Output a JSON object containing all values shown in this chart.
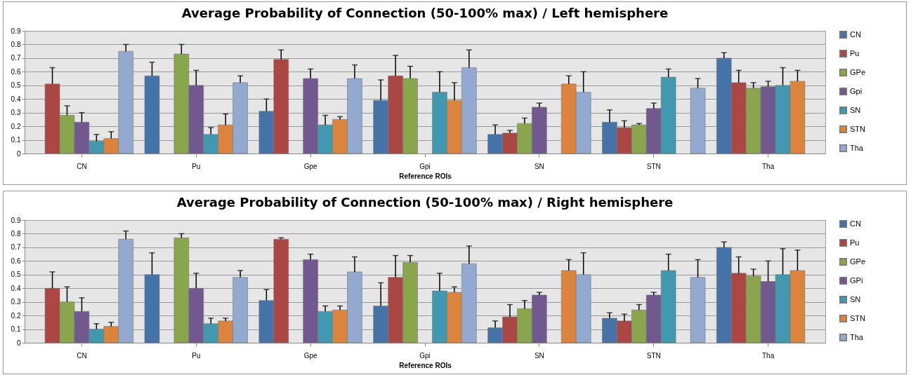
{
  "chart_data": [
    {
      "type": "bar",
      "title": "Average Probability of Connection (50-100% max) / Left hemisphere",
      "xlabel": "Reference ROIs",
      "categories": [
        "CN",
        "Pu",
        "Gpe",
        "Gpi",
        "SN",
        "STN",
        "Tha"
      ],
      "ylim": [
        0,
        0.9
      ],
      "yticks": [
        0,
        0.1,
        0.2,
        0.3,
        0.4,
        0.5,
        0.6,
        0.7,
        0.8,
        0.9
      ],
      "grid": "y",
      "legend": "right",
      "series": [
        {
          "name": "CN",
          "color": "#4572a7",
          "values": [
            null,
            0.57,
            0.31,
            0.39,
            0.14,
            0.23,
            0.7
          ],
          "errors": [
            null,
            [
              0.57,
              0.67
            ],
            [
              0.31,
              0.4
            ],
            [
              0.39,
              0.54
            ],
            [
              0.14,
              0.21
            ],
            [
              0.23,
              0.32
            ],
            [
              0.7,
              0.74
            ]
          ]
        },
        {
          "name": "Pu",
          "color": "#aa4643",
          "values": [
            0.51,
            null,
            0.69,
            0.57,
            0.15,
            0.19,
            0.52
          ],
          "errors": [
            [
              0.51,
              0.63
            ],
            null,
            [
              0.69,
              0.76
            ],
            [
              0.57,
              0.72
            ],
            [
              0.15,
              0.17
            ],
            [
              0.19,
              0.24
            ],
            [
              0.52,
              0.61
            ]
          ]
        },
        {
          "name": "GPe",
          "color": "#89a54e",
          "values": [
            0.28,
            0.73,
            null,
            0.55,
            0.22,
            0.21,
            0.48
          ],
          "errors": [
            [
              0.28,
              0.35
            ],
            [
              0.73,
              0.8
            ],
            null,
            [
              0.55,
              0.64
            ],
            [
              0.22,
              0.26
            ],
            [
              0.21,
              0.22
            ],
            [
              0.48,
              0.52
            ]
          ]
        },
        {
          "name": "Gpi",
          "color": "#71588f",
          "values": [
            0.23,
            0.5,
            0.55,
            null,
            0.34,
            0.33,
            0.49
          ],
          "errors": [
            [
              0.23,
              0.3
            ],
            [
              0.5,
              0.61
            ],
            [
              0.55,
              0.62
            ],
            null,
            [
              0.34,
              0.37
            ],
            [
              0.33,
              0.37
            ],
            [
              0.49,
              0.53
            ]
          ]
        },
        {
          "name": "SN",
          "color": "#4198af",
          "values": [
            0.09,
            0.14,
            0.21,
            0.45,
            null,
            0.56,
            0.5
          ],
          "errors": [
            [
              0.09,
              0.14
            ],
            [
              0.14,
              0.19
            ],
            [
              0.21,
              0.28
            ],
            [
              0.45,
              0.6
            ],
            null,
            [
              0.56,
              0.62
            ],
            [
              0.5,
              0.63
            ]
          ]
        },
        {
          "name": "STN",
          "color": "#db843d",
          "values": [
            0.11,
            0.21,
            0.25,
            0.39,
            0.51,
            null,
            0.53
          ],
          "errors": [
            [
              0.11,
              0.16
            ],
            [
              0.21,
              0.29
            ],
            [
              0.25,
              0.27
            ],
            [
              0.39,
              0.52
            ],
            [
              0.51,
              0.57
            ],
            null,
            [
              0.53,
              0.61
            ]
          ]
        },
        {
          "name": "Tha",
          "color": "#93a9cf",
          "values": [
            0.75,
            0.52,
            0.55,
            0.63,
            0.45,
            0.48,
            null
          ],
          "errors": [
            [
              0.75,
              0.8
            ],
            [
              0.52,
              0.57
            ],
            [
              0.55,
              0.65
            ],
            [
              0.63,
              0.76
            ],
            [
              0.45,
              0.6
            ],
            [
              0.48,
              0.55
            ],
            null
          ]
        }
      ]
    },
    {
      "type": "bar",
      "title": "Average Probability of Connection (50-100% max) / Right hemisphere",
      "xlabel": "Reference ROIs",
      "categories": [
        "CN",
        "Pu",
        "Gpe",
        "Gpi",
        "SN",
        "STN",
        "Tha"
      ],
      "ylim": [
        0,
        0.9
      ],
      "yticks": [
        0,
        0.1,
        0.2,
        0.3,
        0.4,
        0.5,
        0.6,
        0.7,
        0.8,
        0.9
      ],
      "grid": "y",
      "legend": "right",
      "series": [
        {
          "name": "CN",
          "color": "#4572a7",
          "values": [
            null,
            0.5,
            0.31,
            0.27,
            0.11,
            0.18,
            0.7
          ],
          "errors": [
            null,
            [
              0.5,
              0.66
            ],
            [
              0.31,
              0.39
            ],
            [
              0.27,
              0.44
            ],
            [
              0.11,
              0.16
            ],
            [
              0.18,
              0.22
            ],
            [
              0.7,
              0.74
            ]
          ]
        },
        {
          "name": "Pu",
          "color": "#aa4643",
          "values": [
            0.4,
            null,
            0.76,
            0.48,
            0.19,
            0.16,
            0.51
          ],
          "errors": [
            [
              0.4,
              0.52
            ],
            null,
            [
              0.76,
              0.77
            ],
            [
              0.48,
              0.64
            ],
            [
              0.19,
              0.28
            ],
            [
              0.16,
              0.21
            ],
            [
              0.51,
              0.63
            ]
          ]
        },
        {
          "name": "GPe",
          "color": "#89a54e",
          "values": [
            0.3,
            0.77,
            null,
            0.59,
            0.25,
            0.24,
            0.49
          ],
          "errors": [
            [
              0.3,
              0.41
            ],
            [
              0.77,
              0.8
            ],
            null,
            [
              0.59,
              0.64
            ],
            [
              0.25,
              0.31
            ],
            [
              0.24,
              0.28
            ],
            [
              0.49,
              0.54
            ]
          ]
        },
        {
          "name": "GPi",
          "color": "#71588f",
          "values": [
            0.23,
            0.4,
            0.61,
            null,
            0.35,
            0.35,
            0.45
          ],
          "errors": [
            [
              0.23,
              0.33
            ],
            [
              0.4,
              0.51
            ],
            [
              0.61,
              0.65
            ],
            null,
            [
              0.35,
              0.37
            ],
            [
              0.35,
              0.37
            ],
            [
              0.45,
              0.6
            ]
          ]
        },
        {
          "name": "SN",
          "color": "#4198af",
          "values": [
            0.1,
            0.14,
            0.23,
            0.38,
            null,
            0.53,
            0.5
          ],
          "errors": [
            [
              0.1,
              0.14
            ],
            [
              0.14,
              0.18
            ],
            [
              0.23,
              0.27
            ],
            [
              0.38,
              0.51
            ],
            null,
            [
              0.53,
              0.65
            ],
            [
              0.5,
              0.69
            ]
          ]
        },
        {
          "name": "STN",
          "color": "#db843d",
          "values": [
            0.12,
            0.16,
            0.24,
            0.37,
            0.53,
            null,
            0.53
          ],
          "errors": [
            [
              0.12,
              0.15
            ],
            [
              0.16,
              0.18
            ],
            [
              0.24,
              0.27
            ],
            [
              0.37,
              0.41
            ],
            [
              0.53,
              0.61
            ],
            null,
            [
              0.53,
              0.68
            ]
          ]
        },
        {
          "name": "Tha",
          "color": "#93a9cf",
          "values": [
            0.76,
            0.48,
            0.52,
            0.58,
            0.5,
            0.48,
            null
          ],
          "errors": [
            [
              0.76,
              0.82
            ],
            [
              0.48,
              0.53
            ],
            [
              0.52,
              0.63
            ],
            [
              0.58,
              0.71
            ],
            [
              0.5,
              0.66
            ],
            [
              0.48,
              0.61
            ],
            null
          ]
        }
      ]
    }
  ]
}
